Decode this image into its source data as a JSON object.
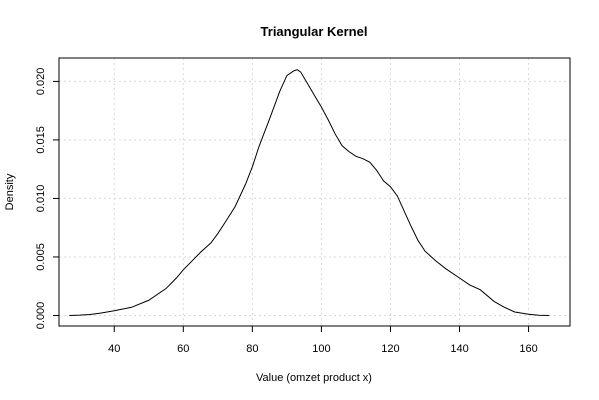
{
  "chart_data": {
    "type": "line",
    "title": "Triangular Kernel",
    "xlabel": "Value (omzet product x)",
    "ylabel": "Density",
    "xlim": [
      24,
      172
    ],
    "ylim": [
      -0.0009,
      0.022
    ],
    "xticks": [
      40,
      60,
      80,
      100,
      120,
      140,
      160
    ],
    "yticks": [
      0.0,
      0.005,
      0.01,
      0.015,
      0.02
    ],
    "ytick_labels": [
      "0.000",
      "0.005",
      "0.010",
      "0.015",
      "0.020"
    ],
    "grid": true,
    "line_color": "#000000",
    "grid_color": "#d9d9d9",
    "series": [
      {
        "x": [
          27,
          30,
          33,
          36,
          40,
          45,
          50,
          55,
          58,
          60,
          62,
          65,
          68,
          70,
          72,
          75,
          78,
          80,
          82,
          85,
          88,
          90,
          92,
          93,
          94,
          96,
          98,
          100,
          102,
          104,
          106,
          108,
          110,
          112,
          114,
          116,
          118,
          120,
          122,
          124,
          126,
          128,
          130,
          133,
          136,
          140,
          143,
          146,
          150,
          153,
          156,
          160,
          163,
          166
        ],
        "y": [
          0.0,
          3e-05,
          8e-05,
          0.0002,
          0.0004,
          0.0007,
          0.0013,
          0.0023,
          0.0032,
          0.0039,
          0.0045,
          0.0054,
          0.0062,
          0.007,
          0.0079,
          0.0093,
          0.0112,
          0.0127,
          0.0145,
          0.0168,
          0.0192,
          0.0205,
          0.0209,
          0.021,
          0.0208,
          0.0198,
          0.0188,
          0.0178,
          0.0167,
          0.0155,
          0.0145,
          0.014,
          0.0136,
          0.0134,
          0.0131,
          0.0124,
          0.0115,
          0.011,
          0.0102,
          0.0089,
          0.0076,
          0.0064,
          0.0055,
          0.0047,
          0.004,
          0.0032,
          0.0026,
          0.0022,
          0.0012,
          0.0007,
          0.0003,
          0.0001,
          2e-05,
          0.0
        ]
      }
    ]
  }
}
